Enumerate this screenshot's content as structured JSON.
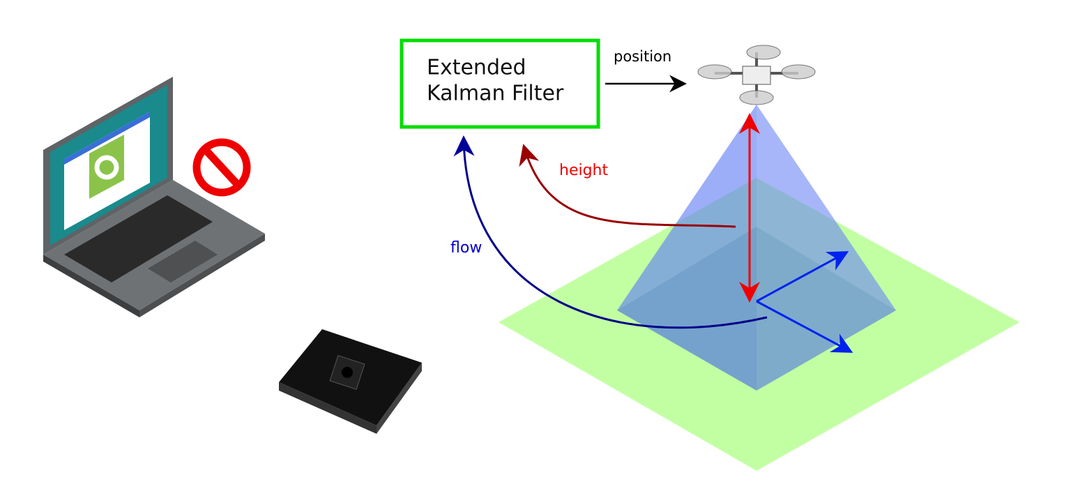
{
  "box": {
    "lines": [
      "Extended",
      "Kalman Filter"
    ]
  },
  "labels": {
    "position": "position",
    "height": "height",
    "flow": "flow"
  }
}
